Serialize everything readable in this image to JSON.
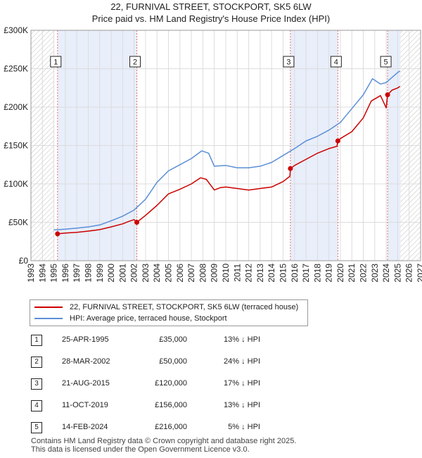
{
  "chart_data": {
    "type": "line",
    "title": "22, FURNIVAL STREET, STOCKPORT, SK5 6LW",
    "subtitle": "Price paid vs. HM Land Registry's House Price Index (HPI)",
    "xlabel": "",
    "ylabel": "",
    "xlim": [
      1993,
      2027
    ],
    "ylim": [
      0,
      300000
    ],
    "y_ticks": [
      {
        "value": 0,
        "label": "£0"
      },
      {
        "value": 50000,
        "label": "£50K"
      },
      {
        "value": 100000,
        "label": "£100K"
      },
      {
        "value": 150000,
        "label": "£150K"
      },
      {
        "value": 200000,
        "label": "£200K"
      },
      {
        "value": 250000,
        "label": "£250K"
      },
      {
        "value": 300000,
        "label": "£300K"
      }
    ],
    "x_ticks": [
      "1993",
      "1994",
      "1995",
      "1996",
      "1997",
      "1998",
      "1999",
      "2000",
      "2001",
      "2002",
      "2003",
      "2004",
      "2005",
      "2006",
      "2007",
      "2008",
      "2009",
      "2010",
      "2011",
      "2012",
      "2013",
      "2014",
      "2015",
      "2016",
      "2017",
      "2018",
      "2019",
      "2020",
      "2021",
      "2022",
      "2023",
      "2024",
      "2025",
      "2026",
      "2027"
    ],
    "grid": true,
    "hatched_regions": [
      [
        1993,
        1995.0
      ],
      [
        2025.25,
        2027
      ]
    ],
    "shaded_bands": [
      [
        1995.32,
        2002.24
      ],
      [
        2015.64,
        2019.78
      ],
      [
        2024.12,
        2025.25
      ]
    ],
    "series": [
      {
        "name": "22, FURNIVAL STREET, STOCKPORT, SK5 6LW (terraced house)",
        "color": "#cc0000",
        "x": [
          1995.32,
          1996,
          1997,
          1998,
          1999,
          2000,
          2001,
          2001.5,
          2002.0,
          2002.24,
          2003,
          2004,
          2005,
          2006,
          2007,
          2007.8,
          2008.3,
          2009,
          2009.5,
          2010,
          2011,
          2012,
          2013,
          2014,
          2015,
          2015.6,
          2015.64,
          2016,
          2017,
          2018,
          2019,
          2019.7,
          2019.78,
          2020,
          2021,
          2022,
          2022.7,
          2023.5,
          2024.0,
          2024.12,
          2024.5,
          2025.0,
          2025.2
        ],
        "values": [
          35000,
          36000,
          37000,
          38500,
          40500,
          44000,
          48000,
          51000,
          53500,
          50000,
          59000,
          72000,
          87000,
          93000,
          100000,
          108000,
          106000,
          92000,
          95000,
          96000,
          94000,
          92000,
          94000,
          96000,
          103000,
          110000,
          120000,
          124000,
          132000,
          140000,
          146000,
          149000,
          156000,
          159000,
          168000,
          186000,
          208000,
          215000,
          199000,
          216000,
          222000,
          225000,
          227000
        ]
      },
      {
        "name": "HPI: Average price, terraced house, Stockport",
        "color": "#5b8fd6",
        "x": [
          1995,
          1996,
          1997,
          1998,
          1999,
          2000,
          2001,
          2002,
          2003,
          2004,
          2005,
          2006,
          2007,
          2007.9,
          2008.5,
          2009,
          2010,
          2011,
          2012,
          2013,
          2014,
          2015,
          2016,
          2017,
          2018,
          2019,
          2020,
          2021,
          2022,
          2022.8,
          2023.5,
          2024,
          2025,
          2025.2
        ],
        "values": [
          40000,
          41000,
          42500,
          44000,
          46500,
          52000,
          58000,
          66000,
          80000,
          102000,
          117000,
          125000,
          133000,
          143000,
          140000,
          123000,
          124000,
          121000,
          121000,
          123000,
          128000,
          137000,
          146000,
          156000,
          162000,
          170000,
          180000,
          198000,
          216000,
          237000,
          230000,
          232000,
          245000,
          247000
        ]
      }
    ],
    "sales": [
      {
        "label": "1",
        "x": 1995.32,
        "price": 35000
      },
      {
        "label": "2",
        "x": 2002.24,
        "price": 50000
      },
      {
        "label": "3",
        "x": 2015.64,
        "price": 120000
      },
      {
        "label": "4",
        "x": 2019.78,
        "price": 156000
      },
      {
        "label": "5",
        "x": 2024.12,
        "price": 216000
      }
    ]
  },
  "legend": {
    "property_label": "22, FURNIVAL STREET, STOCKPORT, SK5 6LW (terraced house)",
    "hpi_label": "HPI: Average price, terraced house, Stockport"
  },
  "transactions": [
    {
      "num": "1",
      "date": "25-APR-1995",
      "price": "£35,000",
      "hpi": "13% ↓ HPI"
    },
    {
      "num": "2",
      "date": "28-MAR-2002",
      "price": "£50,000",
      "hpi": "24% ↓ HPI"
    },
    {
      "num": "3",
      "date": "21-AUG-2015",
      "price": "£120,000",
      "hpi": "17% ↓ HPI"
    },
    {
      "num": "4",
      "date": "11-OCT-2019",
      "price": "£156,000",
      "hpi": "13% ↓ HPI"
    },
    {
      "num": "5",
      "date": "14-FEB-2024",
      "price": "£216,000",
      "hpi": "5% ↓ HPI"
    }
  ],
  "footer": {
    "line1": "Contains HM Land Registry data © Crown copyright and database right 2025.",
    "line2": "This data is licensed under the Open Government Licence v3.0."
  }
}
